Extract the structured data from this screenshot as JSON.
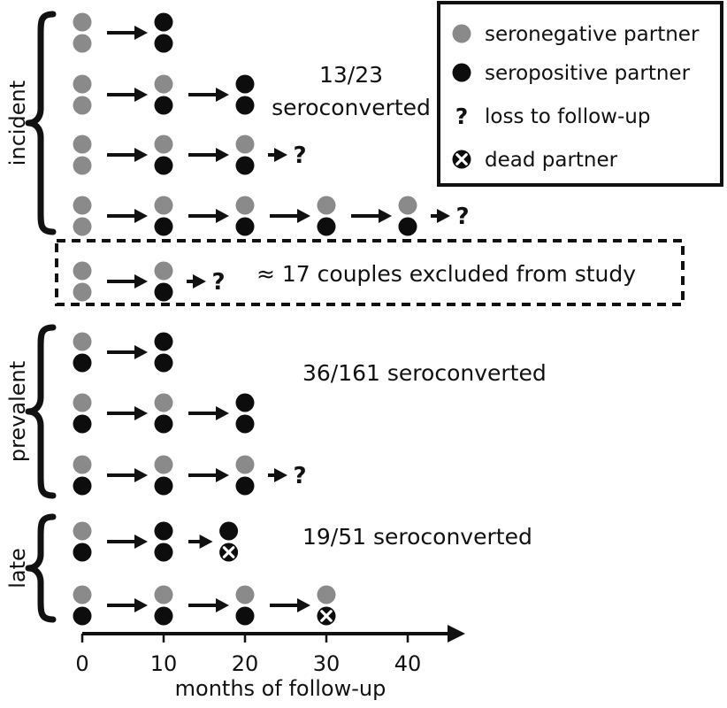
{
  "colors": {
    "seronegative": "#8a8a8a",
    "seropositive": "#0d0d0d",
    "line": "#111111"
  },
  "legend": {
    "items": [
      {
        "symbol": "seronegative",
        "label": "seronegative partner"
      },
      {
        "symbol": "seropositive",
        "label": "seropositive partner"
      },
      {
        "symbol": "question",
        "label": "loss to follow-up"
      },
      {
        "symbol": "dead",
        "label": "dead partner"
      }
    ]
  },
  "groups": [
    {
      "label": "incident",
      "result": [
        "13/23",
        "seroconverted"
      ],
      "rows": [
        {
          "couples": [
            {
              "t": 0,
              "top": "seronegative",
              "bottom": "seronegative"
            },
            {
              "t": 10,
              "top": "seropositive",
              "bottom": "seropositive"
            }
          ],
          "lost": false
        },
        {
          "couples": [
            {
              "t": 0,
              "top": "seronegative",
              "bottom": "seronegative"
            },
            {
              "t": 10,
              "top": "seronegative",
              "bottom": "seropositive"
            },
            {
              "t": 20,
              "top": "seropositive",
              "bottom": "seropositive"
            }
          ],
          "lost": false
        },
        {
          "couples": [
            {
              "t": 0,
              "top": "seronegative",
              "bottom": "seronegative"
            },
            {
              "t": 10,
              "top": "seronegative",
              "bottom": "seropositive"
            },
            {
              "t": 20,
              "top": "seronegative",
              "bottom": "seropositive"
            }
          ],
          "lost": true
        },
        {
          "couples": [
            {
              "t": 0,
              "top": "seronegative",
              "bottom": "seronegative"
            },
            {
              "t": 10,
              "top": "seronegative",
              "bottom": "seropositive"
            },
            {
              "t": 20,
              "top": "seronegative",
              "bottom": "seropositive"
            },
            {
              "t": 30,
              "top": "seronegative",
              "bottom": "seropositive"
            },
            {
              "t": 40,
              "top": "seronegative",
              "bottom": "seropositive"
            }
          ],
          "lost": true
        }
      ]
    },
    {
      "label": "excluded",
      "result": [
        "≈ 17 couples excluded from study"
      ],
      "rows": [
        {
          "couples": [
            {
              "t": 0,
              "top": "seronegative",
              "bottom": "seronegative"
            },
            {
              "t": 10,
              "top": "seronegative",
              "bottom": "seropositive"
            }
          ],
          "lost": true
        }
      ]
    },
    {
      "label": "prevalent",
      "result": [
        "36/161 seroconverted"
      ],
      "rows": [
        {
          "couples": [
            {
              "t": 0,
              "top": "seronegative",
              "bottom": "seropositive"
            },
            {
              "t": 10,
              "top": "seropositive",
              "bottom": "seropositive"
            }
          ],
          "lost": false
        },
        {
          "couples": [
            {
              "t": 0,
              "top": "seronegative",
              "bottom": "seropositive"
            },
            {
              "t": 10,
              "top": "seronegative",
              "bottom": "seropositive"
            },
            {
              "t": 20,
              "top": "seropositive",
              "bottom": "seropositive"
            }
          ],
          "lost": false
        },
        {
          "couples": [
            {
              "t": 0,
              "top": "seronegative",
              "bottom": "seropositive"
            },
            {
              "t": 10,
              "top": "seronegative",
              "bottom": "seropositive"
            },
            {
              "t": 20,
              "top": "seronegative",
              "bottom": "seropositive"
            }
          ],
          "lost": true
        }
      ]
    },
    {
      "label": "late",
      "result": [
        "19/51 seroconverted"
      ],
      "rows": [
        {
          "couples": [
            {
              "t": 0,
              "top": "seronegative",
              "bottom": "seropositive"
            },
            {
              "t": 10,
              "top": "seropositive",
              "bottom": "seropositive"
            },
            {
              "t": 18,
              "top": "seropositive",
              "bottom": "dead"
            }
          ],
          "lost": false
        },
        {
          "couples": [
            {
              "t": 0,
              "top": "seronegative",
              "bottom": "seropositive"
            },
            {
              "t": 10,
              "top": "seronegative",
              "bottom": "seropositive"
            },
            {
              "t": 20,
              "top": "seronegative",
              "bottom": "seropositive"
            },
            {
              "t": 30,
              "top": "seronegative",
              "bottom": "dead"
            }
          ],
          "lost": false
        }
      ]
    }
  ],
  "axis": {
    "label": "months of follow-up",
    "ticks": [
      0,
      10,
      20,
      30,
      40
    ],
    "range": [
      0,
      46
    ]
  },
  "question_mark": "?"
}
